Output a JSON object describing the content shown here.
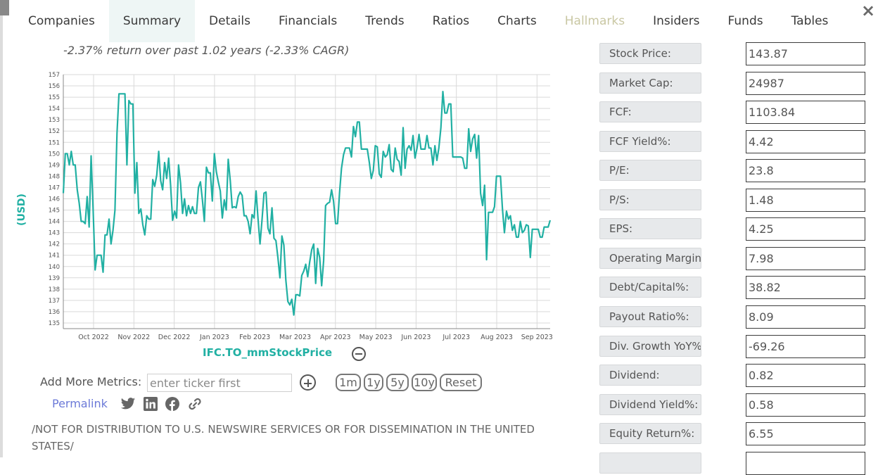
{
  "tabs": [
    {
      "label": "Companies"
    },
    {
      "label": "Summary"
    },
    {
      "label": "Details"
    },
    {
      "label": "Financials"
    },
    {
      "label": "Trends"
    },
    {
      "label": "Ratios"
    },
    {
      "label": "Charts"
    },
    {
      "label": "Hallmarks"
    },
    {
      "label": "Insiders"
    },
    {
      "label": "Funds"
    },
    {
      "label": "Tables"
    }
  ],
  "close_label": "×",
  "return_text": "-2.37% return over past 1.02 years (-2.33% CAGR)",
  "chart_data": {
    "type": "line",
    "ylabel": "(USD)",
    "series_name": "IFC.TO_mmStockPrice",
    "ylim": [
      134.5,
      157
    ],
    "y_ticks": [
      135,
      136,
      137,
      138,
      139,
      140,
      141,
      142,
      143,
      144,
      145,
      146,
      147,
      148,
      149,
      150,
      151,
      152,
      153,
      154,
      155,
      156,
      157
    ],
    "x_tick_labels": [
      "Oct 2022",
      "Nov 2022",
      "Dec 2022",
      "Jan 2023",
      "Feb 2023",
      "Mar 2023",
      "Apr 2023",
      "May 2023",
      "Jun 2023",
      "Jul 2023",
      "Aug 2023",
      "Sep 2023"
    ],
    "grid": true,
    "color": "#21b0a3",
    "values": [
      146.5,
      150,
      150,
      149,
      150.2,
      149,
      149,
      146.8,
      145.6,
      144,
      144,
      143.8,
      146.2,
      143.5,
      149.8,
      145,
      139.7,
      141,
      141,
      141,
      139.5,
      142.8,
      142.8,
      144.2,
      142,
      143.2,
      145,
      151.8,
      155.3,
      155.3,
      155.3,
      155.3,
      149,
      154.7,
      154.4,
      154.4,
      146.5,
      149.2,
      144.7,
      145.1,
      143.7,
      142.8,
      144.5,
      144.2,
      144.2,
      147.7,
      147.1,
      148.1,
      150.2,
      147.6,
      146.8,
      149.2,
      147.8,
      149.6,
      147.2,
      144.1,
      144.9,
      144.3,
      149,
      147.4,
      144.7,
      146,
      144.5,
      145.4,
      144.7,
      145.3,
      144.7,
      144.7,
      147,
      147.5,
      145.9,
      144,
      148.8,
      148.3,
      148.3,
      145.8,
      150,
      148.4,
      147.5,
      146.7,
      144.3,
      145.9,
      145,
      149.5,
      147.6,
      145.2,
      145.3,
      145.2,
      146.2,
      146.6,
      146.3,
      144.5,
      144.5,
      144,
      142.9,
      144.6,
      144.3,
      146.7,
      144.2,
      142,
      144.1,
      146.5,
      146.6,
      143.4,
      142.9,
      145.2,
      142.5,
      142.3,
      140.8,
      139,
      142.7,
      141.9,
      138.8,
      136.9,
      136.6,
      137.1,
      135.7,
      137.5,
      137.5,
      137.4,
      139.2,
      139.6,
      140.2,
      139.1,
      140.4,
      141.5,
      142,
      138.5,
      141.6,
      140.8,
      138.3,
      140.5,
      145.4,
      145.6,
      145.7,
      146.8,
      145.8,
      143.8,
      143.8,
      146.5,
      148.7,
      149.9,
      150.5,
      150.5,
      150.5,
      149.7,
      152.4,
      151.5,
      152.8,
      152.8,
      150.4,
      150.4,
      150.4,
      150.4,
      149.2,
      147.8,
      148.5,
      150.7,
      150.6,
      148.2,
      147.9,
      150.2,
      149.7,
      149.9,
      150.8,
      148.6,
      148.4,
      150.5,
      149.5,
      149.3,
      148.1,
      152.3,
      148.7,
      150.4,
      150.7,
      150.3,
      151.6,
      149.6,
      150.5,
      151.7,
      150.4,
      150.4,
      150.4,
      151.6,
      150.5,
      150.5,
      149,
      150.7,
      149.4,
      150.5,
      152.3,
      155.5,
      153.6,
      153.6,
      154.4,
      154.4,
      149.7,
      149.7,
      149.7,
      149.7,
      149.7,
      149.6,
      148.7,
      148.7,
      152.2,
      150.2,
      151.3,
      151.7,
      149.6,
      151.6,
      146.5,
      145.4,
      147.2,
      140.6,
      144.8,
      144.8,
      144.8,
      145.3,
      148,
      148,
      148,
      145.1,
      143,
      144.9,
      144.2,
      144.5,
      143.2,
      143.7,
      142.6,
      142.6,
      144,
      143,
      143.2,
      143.7,
      143.6,
      140.8,
      143.3,
      143.3,
      143.3,
      143.3,
      142.6,
      142.6,
      143.5,
      143.5,
      143.5,
      144.1
    ]
  },
  "add_metrics": {
    "label": "Add More Metrics:",
    "placeholder": "enter ticker first"
  },
  "range_buttons": [
    {
      "label": "1m"
    },
    {
      "label": "1y"
    },
    {
      "label": "5y"
    },
    {
      "label": "10y"
    },
    {
      "label": "Reset"
    }
  ],
  "permalink": "Permalink",
  "share_icons": [
    "twitter-icon",
    "linkedin-icon",
    "facebook-icon",
    "link-icon"
  ],
  "news_text": "/NOT FOR DISTRIBUTION TO U.S. NEWSWIRE SERVICES OR FOR DISSEMINATION IN THE UNITED STATES/",
  "metrics": [
    {
      "label": "Stock Price:",
      "value": "143.87"
    },
    {
      "label": "Market Cap:",
      "value": "24987"
    },
    {
      "label": "FCF:",
      "value": "1103.84"
    },
    {
      "label": "FCF Yield%:",
      "value": "4.42"
    },
    {
      "label": "P/E:",
      "value": "23.8"
    },
    {
      "label": "P/S:",
      "value": "1.48"
    },
    {
      "label": "EPS:",
      "value": "4.25"
    },
    {
      "label": "Operating Margin",
      "value": "7.98"
    },
    {
      "label": "Debt/Capital%:",
      "value": "38.82"
    },
    {
      "label": "Payout Ratio%:",
      "value": "8.09"
    },
    {
      "label": "Div. Growth YoY%",
      "value": "-69.26"
    },
    {
      "label": "Dividend:",
      "value": "0.82"
    },
    {
      "label": "Dividend Yield%:",
      "value": "0.58"
    },
    {
      "label": "Equity Return%:",
      "value": "6.55"
    },
    {
      "label": "",
      "value": ""
    }
  ]
}
